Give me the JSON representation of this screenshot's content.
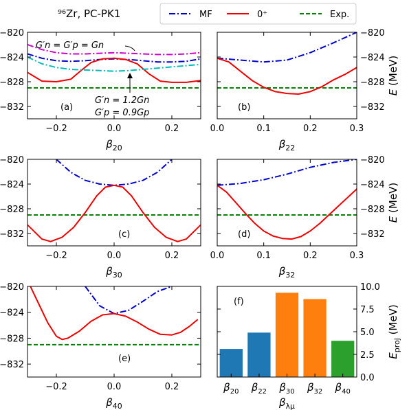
{
  "figure_title": "⁹⁶Zr, PC-PK1",
  "legend": [
    {
      "label": "MF",
      "color": "#0000cc",
      "style": "dashdot"
    },
    {
      "label": "0⁺",
      "color": "#ee0000",
      "style": "solid"
    },
    {
      "label": "Exp.",
      "color": "#008000",
      "style": "dashed"
    }
  ],
  "chart_data": [
    {
      "panel": "(a)",
      "type": "line",
      "xlabel": "β20",
      "ylabel": "E (MeV)",
      "xlim": [
        -0.3,
        0.3
      ],
      "ylim": [
        -834,
        -820
      ],
      "xticks": [
        "−0.2",
        "0.0",
        "0.2"
      ],
      "yticks": [
        "−820",
        "−824",
        "−828",
        "−832"
      ],
      "annotations": [
        "G′n = G′p = Gn",
        "G′n = 1.2Gn",
        "G′p = 0.9Gp"
      ],
      "series": [
        {
          "name": "MF",
          "x": [
            -0.3,
            -0.25,
            -0.2,
            -0.15,
            -0.1,
            -0.05,
            0,
            0.05,
            0.1,
            0.15,
            0.2,
            0.25,
            0.3
          ],
          "y": [
            -823.5,
            -824.2,
            -824.6,
            -824.7,
            -824.6,
            -824.4,
            -824.3,
            -824.4,
            -824.6,
            -824.8,
            -824.8,
            -824.7,
            -824.3
          ]
        },
        {
          "name": "0⁺",
          "x": [
            -0.3,
            -0.25,
            -0.2,
            -0.15,
            -0.12,
            -0.08,
            -0.04,
            0,
            0.04,
            0.08,
            0.12,
            0.16,
            0.2,
            0.25,
            0.3
          ],
          "y": [
            -826.5,
            -827.9,
            -828.0,
            -827.6,
            -826.4,
            -824.9,
            -824.3,
            -824.2,
            -824.4,
            -825.1,
            -826.7,
            -827.9,
            -828.1,
            -828.1,
            -827.8
          ]
        },
        {
          "x": [
            -0.3,
            -0.25,
            -0.2,
            -0.15,
            -0.1,
            -0.05,
            0,
            0.05,
            0.1,
            0.15,
            0.2,
            0.25,
            0.3
          ],
          "y": [
            -822.0,
            -822.8,
            -823.3,
            -823.5,
            -823.5,
            -823.4,
            -823.3,
            -823.4,
            -823.5,
            -823.6,
            -823.6,
            -823.5,
            -823.3
          ],
          "color": "#cc00cc"
        },
        {
          "x": [
            -0.3,
            -0.25,
            -0.2,
            -0.15,
            -0.1,
            -0.05,
            0,
            0.05,
            0.1,
            0.15,
            0.2,
            0.25,
            0.3
          ],
          "y": [
            -824.0,
            -825.1,
            -825.7,
            -826.0,
            -826.1,
            -826.2,
            -826.3,
            -826.2,
            -826.0,
            -825.8,
            -825.6,
            -825.4,
            -825.2
          ],
          "color": "#00bbbb"
        }
      ],
      "exp": -829.0
    },
    {
      "panel": "(b)",
      "type": "line",
      "xlabel": "β22",
      "ylabel": "E (MeV)",
      "xlim": [
        0.0,
        0.3
      ],
      "ylim": [
        -834,
        -820
      ],
      "xticks": [
        "0.0",
        "0.1",
        "0.2",
        "0.3"
      ],
      "yticks": [
        "−820",
        "−824",
        "−828",
        "−832"
      ],
      "series": [
        {
          "name": "MF",
          "x": [
            0,
            0.05,
            0.1,
            0.15,
            0.2,
            0.25,
            0.3
          ],
          "y": [
            -824.2,
            -824.5,
            -824.8,
            -824.5,
            -823.3,
            -821.7,
            -820.0
          ]
        },
        {
          "name": "0⁺",
          "x": [
            0,
            0.025,
            0.05,
            0.075,
            0.1,
            0.125,
            0.15,
            0.175,
            0.2,
            0.225,
            0.25,
            0.275,
            0.3
          ],
          "y": [
            -824.2,
            -824.8,
            -826.3,
            -827.8,
            -828.9,
            -829.6,
            -829.9,
            -830.0,
            -829.6,
            -828.8,
            -827.7,
            -826.8,
            -825.7
          ]
        }
      ],
      "exp": -829.0
    },
    {
      "panel": "(c)",
      "type": "line",
      "xlabel": "β30",
      "ylabel": "E (MeV)",
      "xlim": [
        -0.3,
        0.3
      ],
      "ylim": [
        -834,
        -820
      ],
      "xticks": [
        "−0.2",
        "0.0",
        "0.2"
      ],
      "yticks": [
        "−820",
        "−824",
        "−828",
        "−832"
      ],
      "series": [
        {
          "name": "MF",
          "x": [
            -0.2,
            -0.15,
            -0.1,
            -0.05,
            0,
            0.05,
            0.1,
            0.15,
            0.2
          ],
          "y": [
            -820.0,
            -822.1,
            -823.4,
            -824.0,
            -824.2,
            -824.0,
            -823.4,
            -822.1,
            -820.0
          ]
        },
        {
          "name": "0⁺",
          "x": [
            -0.3,
            -0.25,
            -0.22,
            -0.18,
            -0.14,
            -0.1,
            -0.06,
            -0.03,
            0,
            0.03,
            0.06,
            0.1,
            0.14,
            0.18,
            0.22,
            0.25,
            0.3
          ],
          "y": [
            -830.6,
            -832.9,
            -833.3,
            -832.6,
            -831.0,
            -828.6,
            -825.9,
            -824.5,
            -824.2,
            -824.5,
            -825.9,
            -828.6,
            -831.0,
            -832.6,
            -833.3,
            -832.9,
            -830.6
          ]
        }
      ],
      "exp": -829.0
    },
    {
      "panel": "(d)",
      "type": "line",
      "xlabel": "β32",
      "ylabel": "E (MeV)",
      "xlim": [
        0.0,
        0.3
      ],
      "ylim": [
        -834,
        -820
      ],
      "xticks": [
        "0.0",
        "0.1",
        "0.2",
        "0.3"
      ],
      "yticks": [
        "−820",
        "−824",
        "−828",
        "−832"
      ],
      "series": [
        {
          "name": "MF",
          "x": [
            0,
            0.05,
            0.1,
            0.15,
            0.2,
            0.25,
            0.3
          ],
          "y": [
            -824.2,
            -823.9,
            -823.3,
            -822.4,
            -821.3,
            -820.5,
            -820.0
          ]
        },
        {
          "name": "0⁺",
          "x": [
            0,
            0.02,
            0.04,
            0.06,
            0.08,
            0.1,
            0.12,
            0.14,
            0.16,
            0.18,
            0.2,
            0.22,
            0.24,
            0.26,
            0.28,
            0.3
          ],
          "y": [
            -824.2,
            -825.3,
            -827.0,
            -828.7,
            -830.3,
            -831.6,
            -832.4,
            -832.8,
            -832.9,
            -832.5,
            -831.6,
            -830.4,
            -829.0,
            -827.6,
            -826.2,
            -824.8
          ]
        }
      ],
      "exp": -829.0
    },
    {
      "panel": "(e)",
      "type": "line",
      "xlabel": "β40",
      "ylabel": "E (MeV)",
      "xlim": [
        -0.3,
        0.3
      ],
      "ylim": [
        -834,
        -820
      ],
      "xticks": [
        "−0.2",
        "0.0",
        "0.2"
      ],
      "yticks": [
        "−820",
        "−824",
        "−828",
        "−832"
      ],
      "series": [
        {
          "name": "MF",
          "x": [
            -0.1,
            -0.05,
            0,
            0.05,
            0.1,
            0.15,
            0.2
          ],
          "y": [
            -820.0,
            -823.0,
            -824.2,
            -823.7,
            -822.3,
            -820.8,
            -820.0
          ]
        },
        {
          "name": "0⁺",
          "x": [
            -0.29,
            -0.26,
            -0.23,
            -0.2,
            -0.18,
            -0.16,
            -0.12,
            -0.08,
            -0.04,
            0,
            0.04,
            0.08,
            0.12,
            0.16,
            0.2,
            0.23,
            0.26,
            0.29
          ],
          "y": [
            -820.0,
            -822.8,
            -825.6,
            -827.7,
            -828.2,
            -828.0,
            -826.9,
            -825.4,
            -824.4,
            -824.2,
            -824.6,
            -825.5,
            -826.6,
            -827.4,
            -827.5,
            -827.1,
            -826.2,
            -825.1
          ]
        }
      ],
      "exp": -829.0
    },
    {
      "panel": "(f)",
      "type": "bar",
      "xlabel": "βλμ",
      "ylabel": "Eproj (MeV)",
      "ylim": [
        0,
        10
      ],
      "yticks": [
        "0.0",
        "2.5",
        "5.0",
        "7.5",
        "10.0"
      ],
      "categories": [
        "β20",
        "β22",
        "β30",
        "β32",
        "β40"
      ],
      "values": [
        3.1,
        4.9,
        9.3,
        8.6,
        4.0
      ],
      "colors": [
        "#1f77b4",
        "#1f77b4",
        "#ff7f0e",
        "#ff7f0e",
        "#2ca02c"
      ]
    }
  ]
}
